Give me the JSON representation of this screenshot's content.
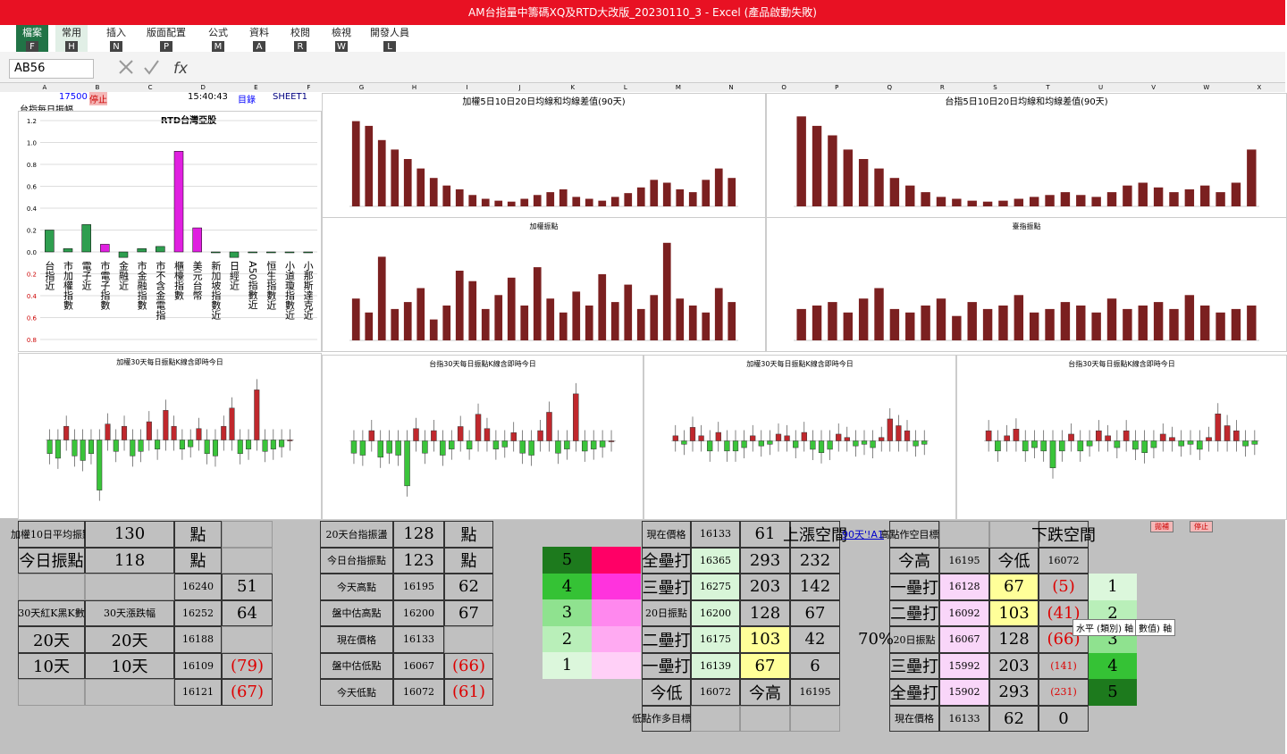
{
  "title_bar": "AM台指量中籌碼XQ及RTD大改版_20230110_3 - Excel (產品啟動失敗)",
  "tabs": [
    {
      "label": "檔案",
      "key": "F"
    },
    {
      "label": "常用",
      "key": "H"
    },
    {
      "label": "插入",
      "key": "N"
    },
    {
      "label": "版面配置",
      "key": "P"
    },
    {
      "label": "公式",
      "key": "M"
    },
    {
      "label": "資料",
      "key": "A"
    },
    {
      "label": "校閱",
      "key": "R"
    },
    {
      "label": "檢視",
      "key": "W"
    },
    {
      "label": "開發人員",
      "key": "L"
    }
  ],
  "name_box": "AB56",
  "columns": [
    "A",
    "B",
    "C",
    "D",
    "E",
    "F",
    "G",
    "H",
    "I",
    "J",
    "K",
    "L",
    "M",
    "N",
    "O",
    "P",
    "Q",
    "R",
    "S",
    "T",
    "U",
    "V",
    "W",
    "X"
  ],
  "sheet_header": {
    "price": "17500",
    "stop": "停止",
    "time": "15:40:43",
    "index": "目錄",
    "sheet": "SHEET1",
    "label": "台指每日振幅"
  },
  "rtd_chart": {
    "type": "bar",
    "title": "RTD台灣亞股",
    "categories": [
      "台指近",
      "市加權指數",
      "電子近",
      "市電子指數",
      "金融近",
      "市金融指數",
      "市不含金電指",
      "櫃檯指數",
      "美元台幣",
      "新加坡指數近",
      "日經近",
      "A50指數近",
      "恒生指數近",
      "小道瓊指數近",
      "小那斯達克近"
    ],
    "values": [
      0.2,
      0.03,
      0.25,
      0.07,
      -0.05,
      0.03,
      0.05,
      0.92,
      0.22,
      0,
      -0.05,
      0,
      0,
      0,
      0
    ],
    "colors": [
      "#2e9e4f",
      "#2e9e4f",
      "#2e9e4f",
      "#e020e0",
      "#2e9e4f",
      "#2e9e4f",
      "#2e9e4f",
      "#e020e0",
      "#e020e0",
      "#2e9e4f",
      "#2e9e4f",
      "#2e9e4f",
      "#2e9e4f",
      "#2e9e4f",
      "#2e9e4f"
    ],
    "ylim": [
      -0.8,
      1.2
    ],
    "yticks": [
      1.2,
      {
        "value": 1,
        "label": "1.0"
      },
      0.8,
      0.6,
      0.4,
      0.2,
      {
        "value": 0,
        "label": "0.0"
      },
      {
        "value": -0.2,
        "label": "0.2"
      },
      {
        "value": -0.4,
        "label": "0.4"
      },
      {
        "value": -0.6,
        "label": "0.6"
      },
      {
        "value": -0.8,
        "label": "0.8"
      }
    ]
  },
  "charts": [
    {
      "type": "bar",
      "title": "加權5日10日20日均線和均線差值(90天)",
      "color": "#7b2020",
      "ylim": [
        0,
        100
      ],
      "values": [
        90,
        85,
        70,
        60,
        50,
        40,
        30,
        22,
        18,
        12,
        8,
        6,
        5,
        8,
        12,
        15,
        18,
        10,
        8,
        6,
        10,
        14,
        20,
        28,
        25,
        18,
        15,
        28,
        40,
        30
      ]
    },
    {
      "type": "bar",
      "title": "台指5日10日20日均線和均線差值(90天)",
      "color": "#7b2020",
      "ylim": [
        0,
        100
      ],
      "values": [
        95,
        85,
        75,
        60,
        50,
        40,
        30,
        22,
        15,
        10,
        8,
        6,
        5,
        6,
        8,
        10,
        12,
        15,
        12,
        10,
        15,
        22,
        25,
        20,
        15,
        18,
        22,
        15,
        25,
        60
      ]
    },
    {
      "type": "bar",
      "title": "加權振點",
      "color": "#7b2020",
      "ylim": [
        0,
        300
      ],
      "values": [
        120,
        80,
        240,
        90,
        110,
        150,
        60,
        100,
        200,
        170,
        90,
        130,
        180,
        100,
        210,
        120,
        80,
        140,
        100,
        190,
        110,
        160,
        90,
        130,
        280,
        120,
        100,
        80,
        150,
        110
      ]
    },
    {
      "type": "bar",
      "title": "臺指振點",
      "color": "#7b2020",
      "ylim": [
        0,
        300
      ],
      "values": [
        90,
        100,
        110,
        80,
        120,
        150,
        90,
        80,
        100,
        120,
        70,
        110,
        90,
        100,
        130,
        80,
        90,
        110,
        100,
        80,
        120,
        90,
        100,
        110,
        90,
        130,
        100,
        80,
        90,
        100
      ]
    },
    {
      "type": "candle",
      "title": "加權30天每日振點K線含即時今日",
      "ylim": [
        -300,
        300
      ],
      "values": [
        -60,
        -80,
        60,
        -70,
        -90,
        -60,
        -220,
        70,
        -50,
        60,
        -70,
        -50,
        80,
        -40,
        130,
        60,
        -40,
        -30,
        50,
        -60,
        -70,
        60,
        140,
        -60,
        -40,
        220,
        -50,
        -40,
        -30,
        0
      ]
    },
    {
      "type": "candle",
      "title": "台指30天每日振點K線含即時今日",
      "ylim": [
        -330,
        330
      ],
      "values": [
        -60,
        -70,
        50,
        -80,
        -60,
        -70,
        -220,
        60,
        -60,
        50,
        -70,
        -40,
        70,
        -40,
        130,
        60,
        -40,
        -30,
        40,
        -60,
        -70,
        50,
        140,
        -60,
        -40,
        230,
        -50,
        -40,
        -30,
        0
      ]
    },
    {
      "type": "candle",
      "title": "加權30天每日振點K線含即時今日",
      "ylim": [
        -400,
        400
      ],
      "values": [
        30,
        -20,
        80,
        30,
        -60,
        50,
        -60,
        -60,
        -40,
        30,
        -30,
        -20,
        40,
        30,
        -40,
        50,
        -50,
        -70,
        -50,
        40,
        20,
        -30,
        -20,
        -40,
        20,
        130,
        90,
        60,
        -30,
        -20
      ]
    },
    {
      "type": "candle",
      "title": "台指30天每日振點K線含即時今日",
      "ylim": [
        -400,
        400
      ],
      "values": [
        60,
        -60,
        30,
        70,
        -60,
        -40,
        -60,
        -160,
        -60,
        40,
        -60,
        -30,
        60,
        30,
        -40,
        60,
        -50,
        -70,
        -40,
        40,
        20,
        -30,
        -20,
        -50,
        20,
        160,
        90,
        60,
        -30,
        -20
      ]
    }
  ],
  "tables": [
    {
      "rows": [
        [
          "加權10日平均振點",
          "130",
          "點",
          ""
        ],
        [
          "今日振點",
          "118",
          "點",
          ""
        ],
        [
          "",
          "",
          "16240",
          "51"
        ],
        [
          "30天紅K黑K數",
          "30天漲跌幅",
          "16252",
          "64"
        ],
        [
          "20天",
          "20天",
          "16188",
          ""
        ],
        [
          "10天",
          "10天",
          "16109",
          "(79)"
        ],
        [
          "",
          "",
          "16121",
          "(67)"
        ]
      ]
    },
    {
      "rows": [
        [
          "20天台指振盪",
          "128",
          "點"
        ],
        [
          "今日台指振點",
          "123",
          "點"
        ],
        [
          "今天高點",
          "16195",
          "62"
        ],
        [
          "盤中估高點",
          "16200",
          "67"
        ],
        [
          "現在價格",
          "16133",
          ""
        ],
        [
          "盤中估低點",
          "16067",
          "(66)"
        ],
        [
          "今天低點",
          "16072",
          "(61)"
        ]
      ]
    },
    {
      "rows": [
        [
          "現在價格",
          "16133",
          "61",
          "上漲空間"
        ],
        [
          "全壘打",
          "16365",
          "293",
          "232"
        ],
        [
          "三壘打",
          "16275",
          "203",
          "142"
        ],
        [
          "20日振點",
          "16200",
          "128",
          "67"
        ],
        [
          "二壘打",
          "16175",
          "103",
          "42"
        ],
        [
          "一壘打",
          "16139",
          "67",
          "6"
        ],
        [
          "今低",
          "16072",
          "今高",
          "16195"
        ],
        [
          "低點作多目標價",
          "",
          "",
          ""
        ]
      ]
    },
    {
      "rows": [
        [
          "高點作空目標價",
          "",
          "",
          "下跌空間"
        ],
        [
          "今高",
          "16195",
          "今低",
          "16072"
        ],
        [
          "一壘打",
          "16128",
          "67",
          "(5)"
        ],
        [
          "二壘打",
          "16092",
          "103",
          "(41)"
        ],
        [
          "20日振點",
          "16067",
          "128",
          "(66)"
        ],
        [
          "三壘打",
          "15992",
          "203",
          "(141)"
        ],
        [
          "全壘打",
          "15902",
          "293",
          "(231)"
        ],
        [
          "現在價格",
          "16133",
          "62",
          "0"
        ]
      ]
    }
  ],
  "levels_left": [
    5,
    4,
    3,
    2,
    1
  ],
  "levels_right": [
    1,
    2,
    3,
    4,
    5
  ],
  "link": "90天'!A1",
  "pct": "70%",
  "tooltip": [
    "水平 (類別) 軸",
    "數值) 軸"
  ],
  "buttons": [
    "拋補",
    "停止"
  ]
}
